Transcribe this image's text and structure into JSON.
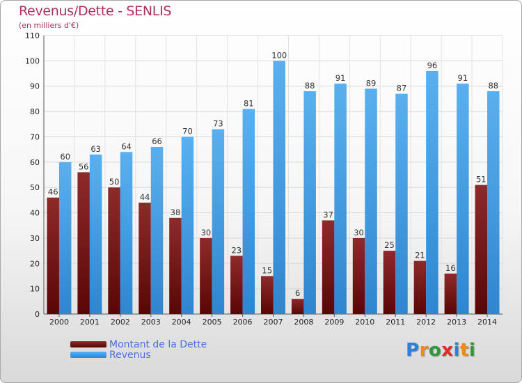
{
  "title": "Revenus/Dette - SENLIS",
  "subtitle": "(en milliers d'€)",
  "logo": {
    "text": "Proxiti"
  },
  "colors": {
    "dette": "#7a1a1a",
    "revenus": "#4aa3e6",
    "title": "#b0305a"
  },
  "chart_data": {
    "type": "bar",
    "categories": [
      "2000",
      "2001",
      "2002",
      "2003",
      "2004",
      "2005",
      "2006",
      "2007",
      "2008",
      "2009",
      "2010",
      "2011",
      "2012",
      "2013",
      "2014"
    ],
    "series": [
      {
        "name": "Montant de la Dette",
        "values": [
          46,
          56,
          50,
          44,
          38,
          30,
          23,
          15,
          6,
          37,
          30,
          25,
          21,
          16,
          51
        ]
      },
      {
        "name": "Revenus",
        "values": [
          60,
          63,
          64,
          66,
          70,
          73,
          81,
          100,
          88,
          91,
          89,
          87,
          96,
          91,
          88
        ]
      }
    ],
    "yticks": [
      0,
      10,
      20,
      30,
      40,
      50,
      60,
      70,
      80,
      90,
      100,
      110
    ],
    "ylim": [
      0,
      110
    ],
    "grid": true,
    "legend": "bottom-left"
  }
}
